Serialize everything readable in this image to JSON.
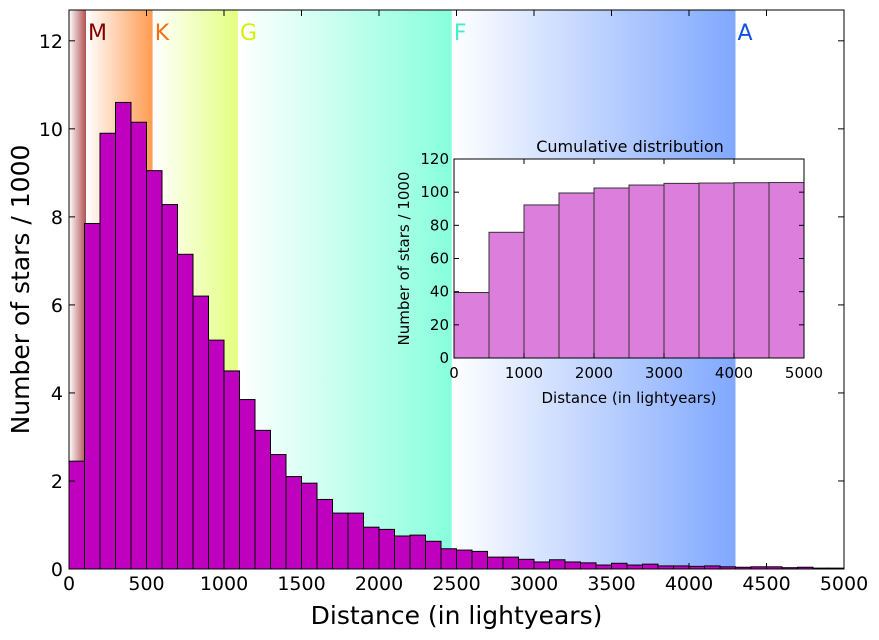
{
  "chart_data": [
    {
      "type": "bar",
      "xlabel": "Distance (in lightyears)",
      "ylabel": "Number of stars / 1000",
      "xlim": [
        0,
        5000
      ],
      "ylim": [
        0,
        12.7
      ],
      "xticks": [
        "0",
        "500",
        "1000",
        "1500",
        "2000",
        "2500",
        "3000",
        "3500",
        "4000",
        "4500",
        "5000"
      ],
      "yticks": [
        "0",
        "2",
        "4",
        "6",
        "8",
        "10",
        "12"
      ],
      "bin_width": 100,
      "bin_start": 0,
      "values": [
        2.45,
        7.85,
        9.9,
        10.6,
        10.15,
        9.05,
        8.28,
        7.15,
        6.2,
        5.2,
        4.5,
        3.85,
        3.15,
        2.6,
        2.1,
        1.95,
        1.58,
        1.27,
        1.27,
        0.95,
        0.9,
        0.75,
        0.77,
        0.63,
        0.46,
        0.43,
        0.4,
        0.27,
        0.27,
        0.22,
        0.16,
        0.21,
        0.16,
        0.14,
        0.09,
        0.13,
        0.09,
        0.11,
        0.07,
        0.07,
        0.06,
        0.07,
        0.05,
        0.04,
        0.05,
        0.05,
        0.03,
        0.04,
        0.02,
        0.02
      ],
      "bar_color": "#bf00bf",
      "spectral_bands": [
        {
          "label": "M",
          "start": 0,
          "end": 110,
          "color": "#7f0000",
          "from_color": "#ffffff",
          "to_color": "#b05050"
        },
        {
          "label": "K",
          "start": 110,
          "end": 540,
          "color": "#f07010",
          "from_color": "#ffffff",
          "to_color": "#ff9b50"
        },
        {
          "label": "G",
          "start": 540,
          "end": 1090,
          "color": "#d6f000",
          "from_color": "#ffffff",
          "to_color": "#e4ff80"
        },
        {
          "label": "F",
          "start": 1090,
          "end": 2470,
          "color": "#40f0c8",
          "from_color": "#ffffff",
          "to_color": "#88ffdc"
        },
        {
          "label": "A",
          "start": 2470,
          "end": 4300,
          "color": "#1050e0",
          "from_color": "#ffffff",
          "to_color": "#80a8ff"
        }
      ]
    },
    {
      "type": "bar",
      "title": "Cumulative distribution",
      "xlabel": "Distance (in lightyears)",
      "ylabel": "Number of stars / 1000",
      "xlim": [
        0,
        5000
      ],
      "ylim": [
        0,
        120
      ],
      "xticks": [
        "0",
        "1000",
        "2000",
        "3000",
        "4000",
        "5000"
      ],
      "yticks": [
        "0",
        "20",
        "40",
        "60",
        "80",
        "100",
        "120"
      ],
      "bin_width": 500,
      "bin_start": 0,
      "values": [
        39.5,
        75.8,
        92.3,
        99.5,
        102.5,
        104.3,
        105.3,
        105.5,
        105.7,
        105.8
      ],
      "bar_color": "#dc7fdc"
    }
  ]
}
